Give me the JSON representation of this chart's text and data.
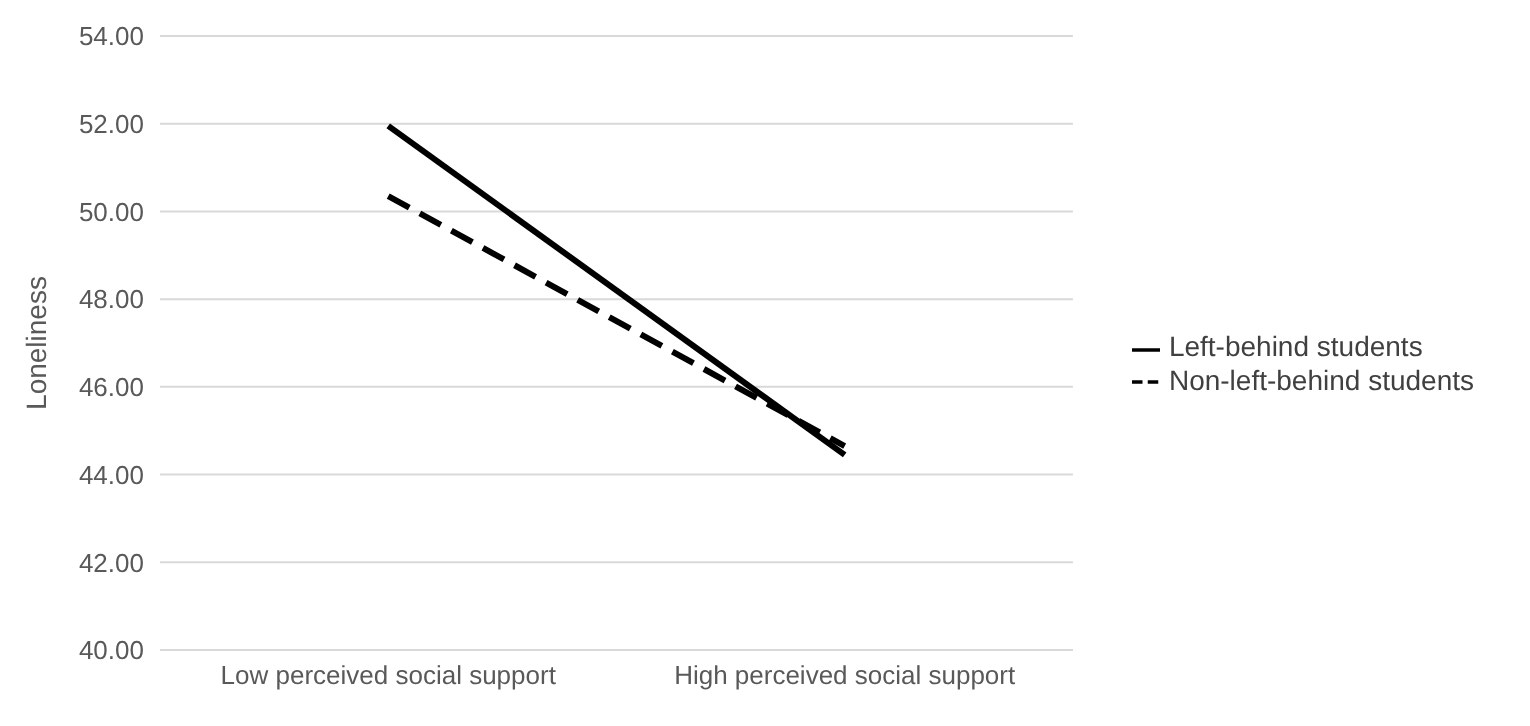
{
  "chart_data": {
    "type": "line",
    "ylabel": "Loneliness",
    "categories": [
      "Low perceived social support",
      "High perceived social support"
    ],
    "series": [
      {
        "name": "Left-behind students",
        "color": "#000000",
        "line_style": "solid",
        "values": [
          51.95,
          44.45
        ]
      },
      {
        "name": "Non-left-behind students",
        "color": "#000000",
        "line_style": "dashed",
        "values": [
          50.35,
          44.65
        ]
      }
    ],
    "ylim": [
      40,
      54
    ],
    "yticks": [
      {
        "value": 40,
        "label": "40.00"
      },
      {
        "value": 42,
        "label": "42.00"
      },
      {
        "value": 44,
        "label": "44.00"
      },
      {
        "value": 46,
        "label": "46.00"
      },
      {
        "value": 48,
        "label": "48.00"
      },
      {
        "value": 50,
        "label": "50.00"
      },
      {
        "value": 52,
        "label": "52.00"
      },
      {
        "value": 54,
        "label": "54.00"
      }
    ],
    "grid": "y",
    "legend": "right",
    "marker": "none"
  }
}
